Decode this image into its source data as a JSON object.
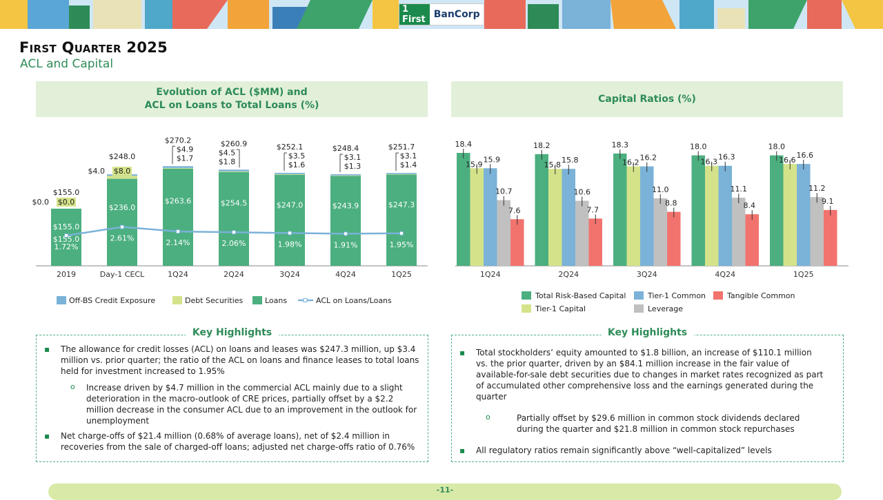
{
  "brand": {
    "logo_first": "1 First",
    "logo_bancorp": "BanCorp"
  },
  "header": {
    "title": "First Quarter 2025",
    "subtitle": "ACL and Capital"
  },
  "left_panel": {
    "title_line1": "Evolution of ACL ($MM) and",
    "title_line2": "ACL on Loans to Total Loans (%)"
  },
  "right_panel": {
    "title": "Capital Ratios (%)"
  },
  "chart_data": [
    {
      "type": "bar",
      "title": "Evolution of ACL ($MM) and ACL on Loans to Total Loans (%)",
      "stacked": true,
      "categories": [
        "2019",
        "Day-1 CECL",
        "1Q24",
        "2Q24",
        "3Q24",
        "4Q24",
        "1Q25"
      ],
      "series": [
        {
          "name": "Loans",
          "values": [
            155.0,
            236.0,
            263.6,
            254.5,
            247.0,
            243.9,
            247.3
          ],
          "labels": [
            "$155.0",
            "$236.0",
            "$263.6",
            "$254.5",
            "$247.0",
            "$243.9",
            "$247.3"
          ]
        },
        {
          "name": "Debt Securities",
          "values": [
            0.0,
            8.0,
            1.7,
            1.8,
            1.6,
            1.3,
            1.4
          ],
          "labels": [
            "$0.0",
            "$8.0",
            "$1.7",
            "$1.8",
            "$1.6",
            "$1.3",
            "$1.4"
          ]
        },
        {
          "name": "Off-BS Credit Exposure",
          "values": [
            0.0,
            4.0,
            4.9,
            4.5,
            3.5,
            3.1,
            3.1
          ],
          "labels": [
            "$0.0",
            "$4.0",
            "$4.9",
            "$4.5",
            "$3.5",
            "$3.1",
            "$3.1"
          ]
        }
      ],
      "totals": [
        155.0,
        248.0,
        270.2,
        260.9,
        252.1,
        248.4,
        251.7
      ],
      "total_labels": [
        "$155.0",
        "$248.0",
        "$270.2",
        "$260.9",
        "$252.1",
        "$248.4",
        "$251.7"
      ],
      "line_series": {
        "name": "ACL on Loans/Loans",
        "values": [
          1.72,
          2.61,
          2.14,
          2.06,
          1.98,
          1.91,
          1.95
        ],
        "labels": [
          "1.72%",
          "2.61%",
          "2.14%",
          "2.06%",
          "1.98%",
          "1.91%",
          "1.95%"
        ]
      },
      "legend": [
        "Off-BS Credit Exposure",
        "Debt Securities",
        "Loans",
        "ACL on Loans/Loans"
      ],
      "ylim": [
        0,
        300
      ]
    },
    {
      "type": "bar",
      "title": "Capital Ratios (%)",
      "categories": [
        "1Q24",
        "2Q24",
        "3Q24",
        "4Q24",
        "1Q25"
      ],
      "series": [
        {
          "name": "Total Risk-Based Capital",
          "values": [
            18.4,
            18.2,
            18.3,
            18.0,
            18.0
          ],
          "labels": [
            "18.4",
            "18.2",
            "18.3",
            "18.0",
            "18.0"
          ]
        },
        {
          "name": "Tier-1 Capital",
          "values": [
            15.9,
            15.8,
            16.2,
            16.3,
            16.6
          ],
          "labels": [
            "15.9",
            "15.8",
            "16.2",
            "16.3",
            "16.6"
          ]
        },
        {
          "name": "Tier-1 Common",
          "values": [
            15.9,
            15.8,
            16.2,
            16.3,
            16.6
          ],
          "labels": [
            "15.9",
            "15.8",
            "16.2",
            "16.3",
            "16.6"
          ]
        },
        {
          "name": "Leverage",
          "values": [
            10.7,
            10.6,
            11.0,
            11.1,
            11.2
          ],
          "labels": [
            "10.7",
            "10.6",
            "11.0",
            "11.1",
            "11.2"
          ]
        },
        {
          "name": "Tangible Common",
          "values": [
            7.6,
            7.7,
            8.8,
            8.4,
            9.1
          ],
          "labels": [
            "7.6",
            "7.7",
            "8.8",
            "8.4",
            "9.1"
          ]
        }
      ],
      "legend": [
        "Total Risk-Based Capital",
        "Tier-1 Common",
        "Tangible Common",
        "Tier-1 Capital",
        "Leverage"
      ],
      "ylim": [
        0,
        20
      ]
    }
  ],
  "colors": {
    "loans": "#4caf80",
    "debt": "#d4e38a",
    "offbs": "#7ab2d8",
    "line": "#7ab2d8",
    "trbc": "#4caf80",
    "t1cap": "#d4e38a",
    "t1com": "#7ab2d8",
    "leverage": "#c0c0c0",
    "tangible": "#f2736e"
  },
  "left_highlights": {
    "title": "Key Highlights",
    "items": [
      "The allowance for credit losses (ACL) on loans and leases was $247.3 million, up $3.4 million vs. prior quarter; the ratio of the ACL on loans and finance leases to total loans held for investment increased to 1.95%",
      "Increase driven by $4.7 million in the commercial ACL mainly due to a slight deterioration in the macro-outlook of CRE prices, partially offset by a $2.2 million decrease in the consumer ACL due to an improvement in the outlook for unemployment",
      "Net charge-offs of $21.4 million (0.68% of average loans), net of $2.4 million in recoveries from the sale of charged-off loans; adjusted net charge-offs ratio of 0.76%"
    ]
  },
  "right_highlights": {
    "title": "Key Highlights",
    "items": [
      "Total stockholders’ equity amounted to $1.8 billion, an increase of $110.1 million vs. the prior quarter, driven by an $84.1 million increase in the fair value of available-for-sale debt securities due to changes in market rates recognized as part of accumulated other comprehensive loss and the earnings generated during the quarter",
      "Partially offset by $29.6 million in common stock dividends declared during the quarter and $21.8 million in common stock repurchases",
      "All regulatory ratios remain significantly above “well-capitalized” levels"
    ]
  },
  "footer": {
    "page": "-11-"
  }
}
